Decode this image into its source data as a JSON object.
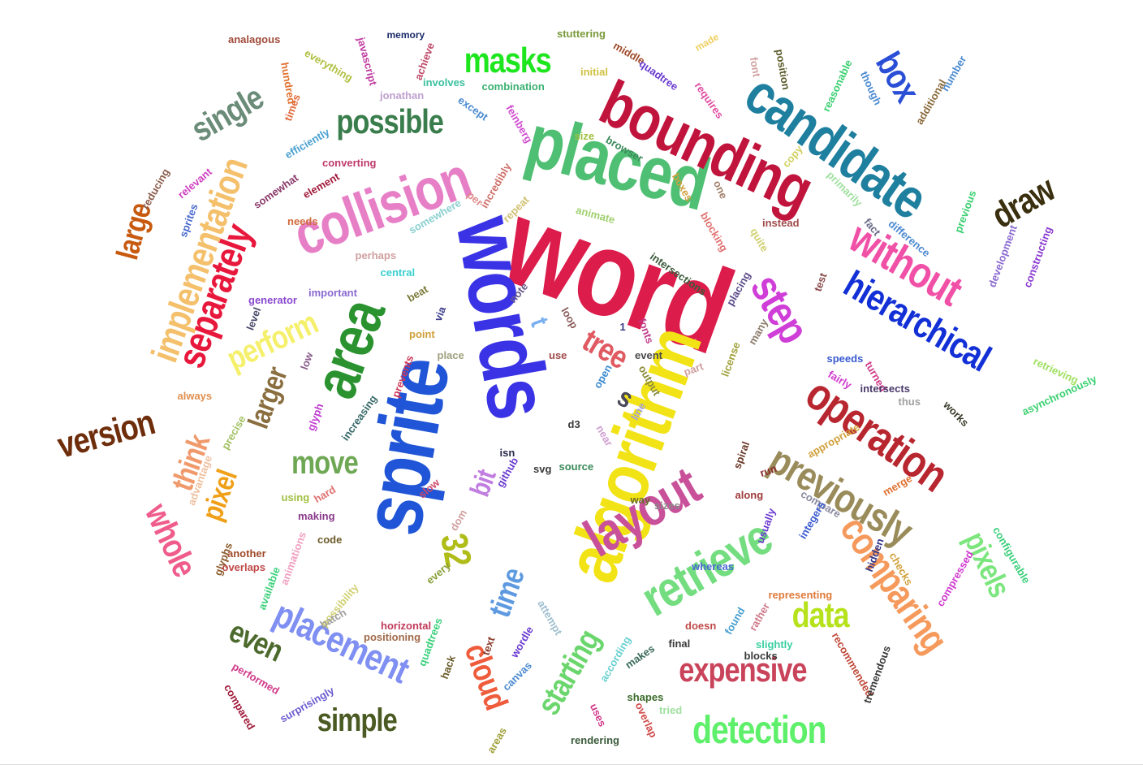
{
  "words": [
    {
      "text": "word",
      "color": "#dc1c4b"
    },
    {
      "text": "sprite",
      "color": "#1f55d6"
    },
    {
      "text": "words",
      "color": "#3a33e6"
    },
    {
      "text": "algorithm",
      "color": "#f2e316"
    },
    {
      "text": "placed",
      "color": "#4fbf73"
    },
    {
      "text": "bounding",
      "color": "#c0143c"
    },
    {
      "text": "candidate",
      "color": "#1f7f9f"
    },
    {
      "text": "collision",
      "color": "#e77fc7"
    },
    {
      "text": "area",
      "color": "#2a9330"
    },
    {
      "text": "layout",
      "color": "#c8519a"
    },
    {
      "text": "retrieve",
      "color": "#73dd80"
    },
    {
      "text": "operation",
      "color": "#b8262f"
    },
    {
      "text": "hierarchical",
      "color": "#1230d6"
    },
    {
      "text": "without",
      "color": "#f051a7"
    },
    {
      "text": "step",
      "color": "#d03ed8"
    },
    {
      "text": "previously",
      "color": "#9a8c5a"
    },
    {
      "text": "comparing",
      "color": "#f59a5c"
    },
    {
      "text": "expensive",
      "color": "#c9435a"
    },
    {
      "text": "detection",
      "color": "#5ef06a"
    },
    {
      "text": "placement",
      "color": "#7f8ff2"
    },
    {
      "text": "separately",
      "color": "#e8183c"
    },
    {
      "text": "implementation",
      "color": "#f4c06c"
    },
    {
      "text": "possible",
      "color": "#3a7d4c"
    },
    {
      "text": "single",
      "color": "#6b8c78"
    },
    {
      "text": "masks",
      "color": "#1ee61e"
    },
    {
      "text": "box",
      "color": "#2a4fd6"
    },
    {
      "text": "draw",
      "color": "#3a2f0e"
    },
    {
      "text": "version",
      "color": "#6e2d0b"
    },
    {
      "text": "large",
      "color": "#c85a10"
    },
    {
      "text": "whole",
      "color": "#ef5c8c"
    },
    {
      "text": "think",
      "color": "#f09a6c"
    },
    {
      "text": "pixel",
      "color": "#f0a018"
    },
    {
      "text": "larger",
      "color": "#8a6e3f"
    },
    {
      "text": "perform",
      "color": "#f5f06c"
    },
    {
      "text": "move",
      "color": "#6fa855"
    },
    {
      "text": "tree",
      "color": "#e05a62"
    },
    {
      "text": "bit",
      "color": "#c07ee0"
    },
    {
      "text": "32",
      "color": "#b0bc18"
    },
    {
      "text": "time",
      "color": "#5e9ae0"
    },
    {
      "text": "cloud",
      "color": "#ef5c3c"
    },
    {
      "text": "starting",
      "color": "#6ad66c"
    },
    {
      "text": "data",
      "color": "#b6e21c"
    },
    {
      "text": "simple",
      "color": "#4a5a22"
    },
    {
      "text": "even",
      "color": "#4d6a2d"
    },
    {
      "text": "pixels",
      "color": "#7ce67e"
    },
    {
      "text": "s",
      "color": "#4a4a5a"
    },
    {
      "text": "t",
      "color": "#7bb0f0"
    },
    {
      "text": "analagous",
      "color": "#a04a3a"
    },
    {
      "text": "memory",
      "color": "#1a2a6a"
    },
    {
      "text": "stuttering",
      "color": "#7a9a3a"
    },
    {
      "text": "made",
      "color": "#f0d060"
    },
    {
      "text": "javascript",
      "color": "#c03aa0"
    },
    {
      "text": "achieve",
      "color": "#c04a6a"
    },
    {
      "text": "everything",
      "color": "#b0c040"
    },
    {
      "text": "hundred",
      "color": "#e07030"
    },
    {
      "text": "jonathan",
      "color": "#c0a0d0"
    },
    {
      "text": "involves",
      "color": "#3ac0a0"
    },
    {
      "text": "combination",
      "color": "#3ab070"
    },
    {
      "text": "initial",
      "color": "#d0c040"
    },
    {
      "text": "middle",
      "color": "#a04a2a"
    },
    {
      "text": "quadtree",
      "color": "#6a3ad0"
    },
    {
      "text": "font",
      "color": "#d0a0a0"
    },
    {
      "text": "position",
      "color": "#5a5a2a"
    },
    {
      "text": "reasonable",
      "color": "#3ad070"
    },
    {
      "text": "though",
      "color": "#4a8ad0"
    },
    {
      "text": "number",
      "color": "#4a8ad0"
    },
    {
      "text": "additional",
      "color": "#8a6a3a"
    },
    {
      "text": "requires",
      "color": "#e04aa0"
    },
    {
      "text": "feinberg",
      "color": "#d04ad0"
    },
    {
      "text": "except",
      "color": "#4a8ad0"
    },
    {
      "text": "times",
      "color": "#e06a3a"
    },
    {
      "text": "efficiently",
      "color": "#4aa0d0"
    },
    {
      "text": "size",
      "color": "#a0c040"
    },
    {
      "text": "browser",
      "color": "#3a8a5a"
    },
    {
      "text": "copy",
      "color": "#d0d060"
    },
    {
      "text": "converting",
      "color": "#c03a6a"
    },
    {
      "text": "element",
      "color": "#a01a3a"
    },
    {
      "text": "relevant",
      "color": "#d040c0"
    },
    {
      "text": "somewhat",
      "color": "#8a3a6a"
    },
    {
      "text": "reducing",
      "color": "#8a5a4a"
    },
    {
      "text": "sprites",
      "color": "#4a6ad0"
    },
    {
      "text": "needs",
      "color": "#d06a3a"
    },
    {
      "text": "somewhere",
      "color": "#8ad0d0"
    },
    {
      "text": "per",
      "color": "#e08a8a"
    },
    {
      "text": "incredibly",
      "color": "#d0706a"
    },
    {
      "text": "repeat",
      "color": "#d0c070"
    },
    {
      "text": "animate",
      "color": "#a0d070"
    },
    {
      "text": "boxes",
      "color": "#d0a03a"
    },
    {
      "text": "one",
      "color": "#a0806a"
    },
    {
      "text": "blocking",
      "color": "#e07070"
    },
    {
      "text": "quite",
      "color": "#d0d070"
    },
    {
      "text": "primarily",
      "color": "#a0e0a0"
    },
    {
      "text": "instead",
      "color": "#a04a4a"
    },
    {
      "text": "fact",
      "color": "#6a6a8a"
    },
    {
      "text": "difference",
      "color": "#4a8ad0"
    },
    {
      "text": "previous",
      "color": "#3ad070"
    },
    {
      "text": "development",
      "color": "#8a6ad0"
    },
    {
      "text": "constructing",
      "color": "#8a3ad0"
    },
    {
      "text": "perhaps",
      "color": "#d0a0a0"
    },
    {
      "text": "central",
      "color": "#3ad0d0"
    },
    {
      "text": "intersections",
      "color": "#3a5a3a"
    },
    {
      "text": "placing",
      "color": "#5a4a8a"
    },
    {
      "text": "many",
      "color": "#8a7a6a"
    },
    {
      "text": "test",
      "color": "#8a4a4a"
    },
    {
      "text": "generator",
      "color": "#8a4ad0"
    },
    {
      "text": "important",
      "color": "#8a6ad0"
    },
    {
      "text": "note",
      "color": "#6a5a8a"
    },
    {
      "text": "beat",
      "color": "#7a7a3a"
    },
    {
      "text": "level",
      "color": "#4a4a6a"
    },
    {
      "text": "via",
      "color": "#3a3a8a"
    },
    {
      "text": "point",
      "color": "#d0a03a"
    },
    {
      "text": "loop",
      "color": "#8a5a5a"
    },
    {
      "text": "1",
      "color": "#3a3a8a"
    },
    {
      "text": "fonts",
      "color": "#c03a8a"
    },
    {
      "text": "low",
      "color": "#8a5a8a"
    },
    {
      "text": "place",
      "color": "#a0a080"
    },
    {
      "text": "use",
      "color": "#a04a4a"
    },
    {
      "text": "event",
      "color": "#4a4a4a"
    },
    {
      "text": "license",
      "color": "#a0a03a"
    },
    {
      "text": "speeds",
      "color": "#3a5ad0"
    },
    {
      "text": "turned",
      "color": "#d03a8a"
    },
    {
      "text": "fairly",
      "color": "#d03ad0"
    },
    {
      "text": "always",
      "color": "#e09050"
    },
    {
      "text": "prevents",
      "color": "#d03a5a"
    },
    {
      "text": "open",
      "color": "#3a8ad0"
    },
    {
      "text": "output",
      "color": "#8a8a3a"
    },
    {
      "text": "part",
      "color": "#d0a0a0"
    },
    {
      "text": "intersects",
      "color": "#4a3a6a"
    },
    {
      "text": "retrieving",
      "color": "#a0e060"
    },
    {
      "text": "asynchronously",
      "color": "#3ad070"
    },
    {
      "text": "thus",
      "color": "#a0a0a0"
    },
    {
      "text": "glyph",
      "color": "#c03ad0"
    },
    {
      "text": "precise",
      "color": "#a0c060"
    },
    {
      "text": "increasing",
      "color": "#3a6a6a"
    },
    {
      "text": "d3",
      "color": "#3a3a3a"
    },
    {
      "text": "line",
      "color": "#a0a0e0"
    },
    {
      "text": "near",
      "color": "#d0a0d0"
    },
    {
      "text": "works",
      "color": "#3a3a2a"
    },
    {
      "text": "appropriate",
      "color": "#d0a03a"
    },
    {
      "text": "spiral",
      "color": "#6a3a2a"
    },
    {
      "text": "run",
      "color": "#8a2a2a"
    },
    {
      "text": "merge",
      "color": "#e07030"
    },
    {
      "text": "advantage",
      "color": "#f0c0a0"
    },
    {
      "text": "isn",
      "color": "#2a2a4a"
    },
    {
      "text": "github",
      "color": "#6a3ad0"
    },
    {
      "text": "svg",
      "color": "#3a3a3a"
    },
    {
      "text": "source",
      "color": "#3a8a5a"
    },
    {
      "text": "using",
      "color": "#a0c040"
    },
    {
      "text": "hard",
      "color": "#e07070"
    },
    {
      "text": "making",
      "color": "#8a3a8a"
    },
    {
      "text": "slow",
      "color": "#d04a6a"
    },
    {
      "text": "dom",
      "color": "#d0a0a0"
    },
    {
      "text": "way",
      "color": "#6a6a2a"
    },
    {
      "text": "sizes",
      "color": "#8a8a8a"
    },
    {
      "text": "along",
      "color": "#a03a3a"
    },
    {
      "text": "usually",
      "color": "#6a3ad0"
    },
    {
      "text": "compare",
      "color": "#8a8aa0"
    },
    {
      "text": "integers",
      "color": "#3a5ad0"
    },
    {
      "text": "configurable",
      "color": "#3ad07a"
    },
    {
      "text": "animations",
      "color": "#f0a0c0"
    },
    {
      "text": "glyphs",
      "color": "#8a5a2a"
    },
    {
      "text": "code",
      "color": "#6a5a2a"
    },
    {
      "text": "another",
      "color": "#a04a2a"
    },
    {
      "text": "overlaps",
      "color": "#c04a4a"
    },
    {
      "text": "available",
      "color": "#3ad07a"
    },
    {
      "text": "possibility",
      "color": "#d0d070"
    },
    {
      "text": "batch",
      "color": "#a0a0a0"
    },
    {
      "text": "every",
      "color": "#8aa03a"
    },
    {
      "text": "whereas",
      "color": "#4a6ad0"
    },
    {
      "text": "hidden",
      "color": "#3a3a8a"
    },
    {
      "text": "checks",
      "color": "#d0a03a"
    },
    {
      "text": "compressed",
      "color": "#d03ad0"
    },
    {
      "text": "representing",
      "color": "#e07a3a"
    },
    {
      "text": "doesn",
      "color": "#c04a4a"
    },
    {
      "text": "found",
      "color": "#4aa0d0"
    },
    {
      "text": "rather",
      "color": "#d07a8a"
    },
    {
      "text": "attempt",
      "color": "#a0c0d0"
    },
    {
      "text": "horizontal",
      "color": "#c03a5a"
    },
    {
      "text": "positioning",
      "color": "#a06a4a"
    },
    {
      "text": "quadtrees",
      "color": "#3ad07a"
    },
    {
      "text": "wordle",
      "color": "#6a3ad0"
    },
    {
      "text": "text",
      "color": "#8a3a2a"
    },
    {
      "text": "hack",
      "color": "#6a5a2a"
    },
    {
      "text": "canvas",
      "color": "#4a8ad0"
    },
    {
      "text": "according",
      "color": "#6ad0d0"
    },
    {
      "text": "makes",
      "color": "#3a6a5a"
    },
    {
      "text": "final",
      "color": "#3a3a3a"
    },
    {
      "text": "slightly",
      "color": "#3ad0a0"
    },
    {
      "text": "blocks",
      "color": "#3a3a3a"
    },
    {
      "text": "recommended",
      "color": "#c04a3a"
    },
    {
      "text": "tremendous",
      "color": "#3a3a3a"
    },
    {
      "text": "performed",
      "color": "#d03a8a"
    },
    {
      "text": "compared",
      "color": "#a01a3a"
    },
    {
      "text": "surprisingly",
      "color": "#6a5ad0"
    },
    {
      "text": "shapes",
      "color": "#3a6a2a"
    },
    {
      "text": "tried",
      "color": "#a0e0a0"
    },
    {
      "text": "uses",
      "color": "#d03a8a"
    },
    {
      "text": "overlap",
      "color": "#d04a4a"
    },
    {
      "text": "areas",
      "color": "#a0a03a"
    },
    {
      "text": "rendering",
      "color": "#3a5a3a"
    }
  ]
}
